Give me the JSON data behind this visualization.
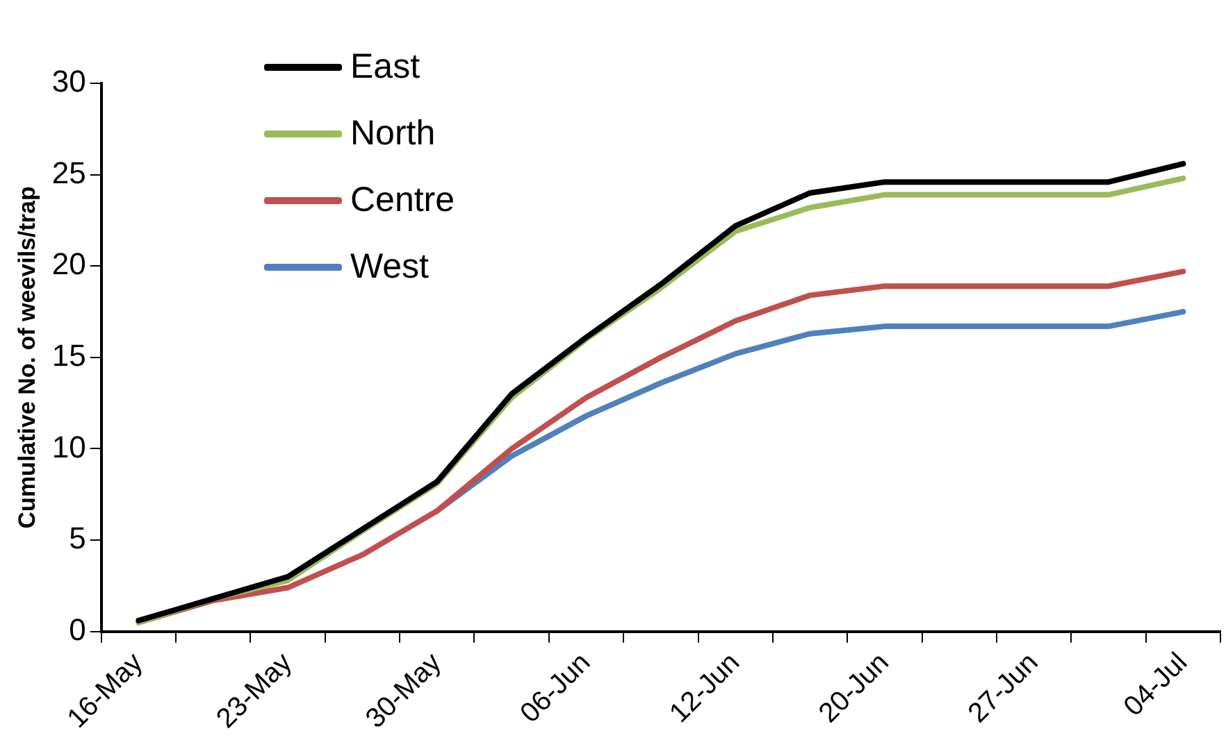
{
  "chart_data": {
    "type": "line",
    "ylabel": "Cumulative No. of weevils/trap",
    "categories": [
      "16-May",
      null,
      "23-May",
      null,
      "30-May",
      null,
      "06-Jun",
      null,
      "12-Jun",
      null,
      "20-Jun",
      null,
      "27-Jun",
      null,
      "04-Jul"
    ],
    "series": [
      {
        "name": "East",
        "color": "#000000",
        "values": [
          0.6,
          1.8,
          3.0,
          5.6,
          8.2,
          13.0,
          16.1,
          19.0,
          22.2,
          24.0,
          24.6,
          24.6,
          24.6,
          24.6,
          25.6
        ]
      },
      {
        "name": "North",
        "color": "#9bbb59",
        "values": [
          0.5,
          1.8,
          2.8,
          5.5,
          8.1,
          12.8,
          16.0,
          18.8,
          21.9,
          23.2,
          23.9,
          23.9,
          23.9,
          23.9,
          24.8
        ]
      },
      {
        "name": "Centre",
        "color": "#c0504d",
        "values": [
          0.5,
          1.7,
          2.4,
          4.2,
          6.6,
          10.0,
          12.8,
          15.0,
          17.0,
          18.4,
          18.9,
          18.9,
          18.9,
          18.9,
          19.7
        ]
      },
      {
        "name": "West",
        "color": "#4f81bd",
        "values": [
          null,
          null,
          null,
          null,
          6.6,
          9.6,
          11.8,
          13.6,
          15.2,
          16.3,
          16.7,
          16.7,
          16.7,
          16.7,
          17.5
        ]
      }
    ],
    "ylim": [
      0,
      30
    ],
    "yticks": [
      0,
      5,
      10,
      15,
      20,
      25,
      30
    ],
    "grid": false,
    "legend": "top left",
    "marker": "none",
    "line_style": "solid"
  }
}
